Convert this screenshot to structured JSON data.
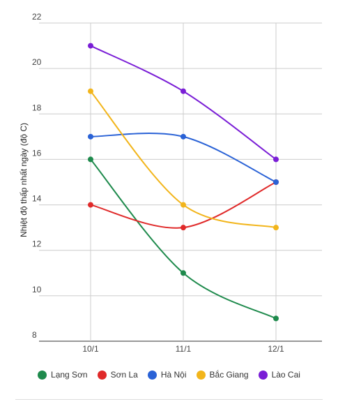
{
  "chart_data": {
    "type": "line",
    "categories": [
      "10/1",
      "11/1",
      "12/1"
    ],
    "ylabel": "Nhiệt độ thấp nhất ngày (độ C)",
    "ylim": [
      8,
      22
    ],
    "yticks": [
      8,
      10,
      12,
      14,
      16,
      18,
      20,
      22
    ],
    "grid": true,
    "legend_position": "bottom",
    "series": [
      {
        "name": "Lạng Sơn",
        "color": "#1e8a4c",
        "values": [
          16,
          11,
          9
        ]
      },
      {
        "name": "Sơn La",
        "color": "#e02a2a",
        "values": [
          14,
          13,
          15
        ]
      },
      {
        "name": "Hà Nội",
        "color": "#2a62d6",
        "values": [
          17,
          17,
          15
        ]
      },
      {
        "name": "Bắc Giang",
        "color": "#f2b51b",
        "values": [
          19,
          14,
          13
        ]
      },
      {
        "name": "Lào Cai",
        "color": "#7a1ed6",
        "values": [
          21,
          19,
          16
        ]
      }
    ]
  }
}
